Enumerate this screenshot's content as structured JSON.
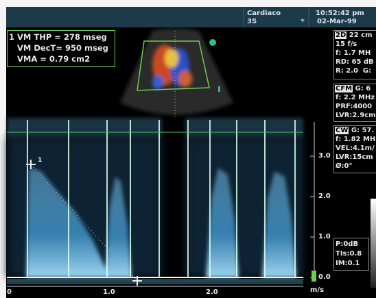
{
  "header": {
    "preset": "Cardiaco",
    "probe": "3S",
    "time": "10:52:42 pm",
    "date": "02-Mar-99"
  },
  "measurements": [
    "1 VM THP = 278 mseg",
    "VM DecT= 950 mseg",
    "VMA = 0.79 cm2"
  ],
  "settings_2d": {
    "label": "2D",
    "depth": "22 cm",
    "lines": [
      "15 f/s",
      "f: 1.7 MH",
      "RD: 65 dB",
      "R: 2.0  G:"
    ]
  },
  "settings_cfm": {
    "label": "CFM",
    "gain": "G: 6",
    "lines": [
      "f: 2.2 MHz",
      "PRF:4000",
      "LVR:2.9cm"
    ]
  },
  "settings_cw": {
    "label": "CW",
    "gain": "G: 57.",
    "lines": [
      "f: 1.82 MH",
      "VEL:4.1m/",
      "LVR:15cm",
      "Ø:0°"
    ]
  },
  "output": [
    "P:0dB",
    "TIs:0.8",
    "IM:0.1"
  ],
  "velocity_scale": {
    "ticks": [
      "3.0",
      "2.0",
      "1.0",
      "0.0"
    ],
    "unit": "m/s"
  },
  "time_scale": {
    "ticks": [
      "0",
      "1.0",
      "2.0"
    ]
  },
  "cursor_label": "1"
}
